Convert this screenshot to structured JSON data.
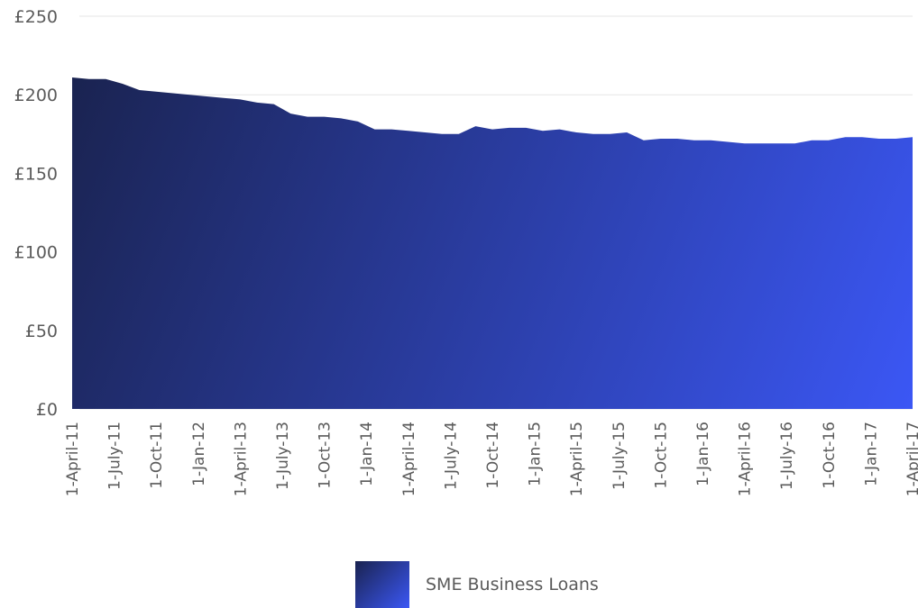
{
  "chart_data": {
    "type": "area",
    "ylim": [
      0,
      250
    ],
    "y_ticks": [
      {
        "value": 0,
        "label": "£0"
      },
      {
        "value": 50,
        "label": "£50"
      },
      {
        "value": 100,
        "label": "£100"
      },
      {
        "value": 150,
        "label": "£150"
      },
      {
        "value": 200,
        "label": "£200"
      },
      {
        "value": 250,
        "label": "£250"
      }
    ],
    "x_tick_labels": [
      "1-April-11",
      "1-July-11",
      "1-Oct-11",
      "1-Jan-12",
      "1-April-13",
      "1-July-13",
      "1-Oct-13",
      "1-Jan-14",
      "1-April-14",
      "1-July-14",
      "1-Oct-14",
      "1-Jan-15",
      "1-April-15",
      "1-July-15",
      "1-Oct-15",
      "1-Jan-16",
      "1-April-16",
      "1-July-16",
      "1-Oct-16",
      "1-Jan-17",
      "1-April-17"
    ],
    "grid": true,
    "legend_position": "bottom-center",
    "series": [
      {
        "name": "SME Business Loans",
        "color_start": "#1a2350",
        "color_end": "#3b57f5",
        "values": [
          211,
          210,
          210,
          207,
          203,
          202,
          201,
          200,
          199,
          198,
          197,
          195,
          194,
          188,
          186,
          186,
          185,
          183,
          178,
          178,
          177,
          176,
          175,
          175,
          180,
          178,
          179,
          179,
          177,
          178,
          176,
          175,
          175,
          176,
          171,
          172,
          172,
          171,
          171,
          170,
          169,
          169,
          169,
          169,
          171,
          171,
          173,
          173,
          172,
          172,
          173
        ]
      }
    ]
  },
  "legend": {
    "label": "SME Business Loans"
  }
}
